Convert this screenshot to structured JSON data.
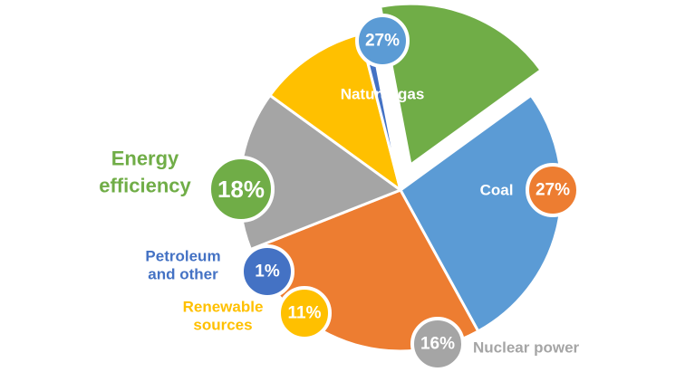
{
  "chart_data": {
    "type": "pie",
    "slices": [
      {
        "name": "Natural gas",
        "value": 27,
        "value_label": "27%",
        "color": "#5B9BD5",
        "label_color": "#ffffff",
        "exploded": false
      },
      {
        "name": "Coal",
        "value": 27,
        "value_label": "27%",
        "color": "#ED7D31",
        "label_color": "#ffffff",
        "exploded": false
      },
      {
        "name": "Nuclear power",
        "value": 16,
        "value_label": "16%",
        "color": "#A5A5A5",
        "label_color": "#A5A5A5",
        "exploded": false
      },
      {
        "name": "Renewable sources",
        "value": 11,
        "value_label": "11%",
        "color": "#FFC000",
        "label_color": "#FFC000",
        "exploded": false
      },
      {
        "name": "Petroleum and other",
        "value": 1,
        "value_label": "1%",
        "color": "#4472C4",
        "label_color": "#4472C4",
        "exploded": false
      },
      {
        "name": "Energy efficiency",
        "value": 18,
        "value_label": "18%",
        "color": "#70AD47",
        "label_color": "#70AD47",
        "exploded": true
      }
    ]
  }
}
